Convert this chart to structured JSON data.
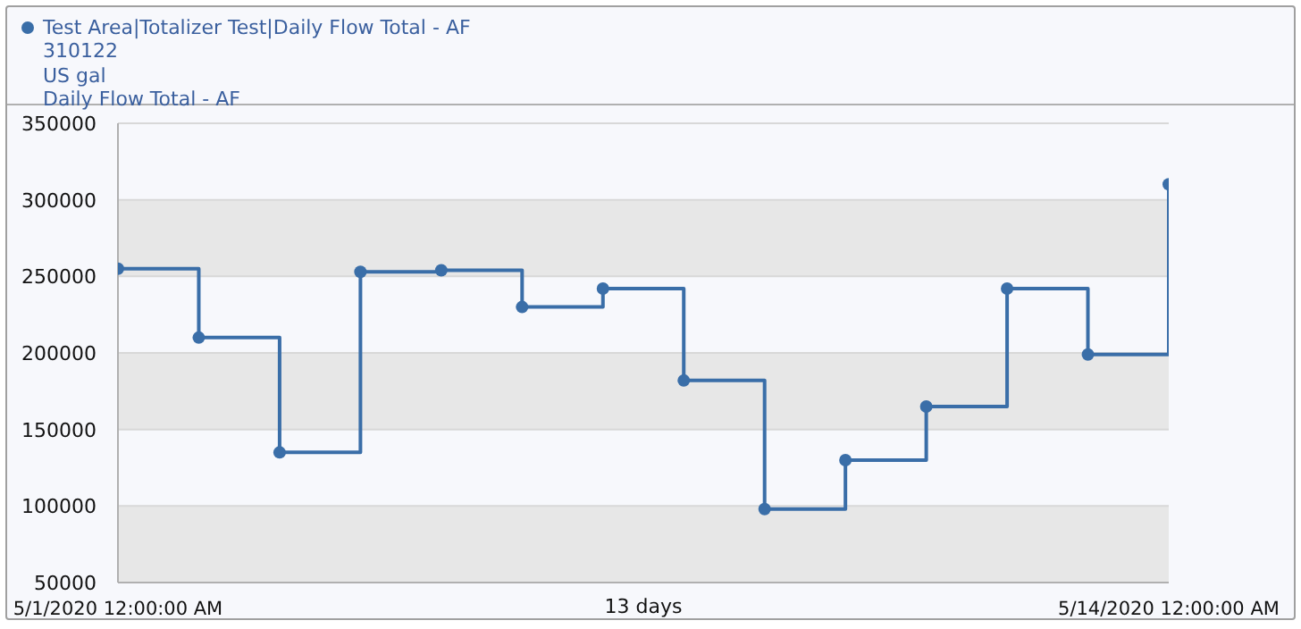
{
  "chart_data": {
    "type": "step",
    "legend": "top left",
    "grid": "y",
    "marker": "circle",
    "line_style": "solid",
    "x": [
      "2020-05-01",
      "2020-05-02",
      "2020-05-03",
      "2020-05-04",
      "2020-05-05",
      "2020-05-06",
      "2020-05-07",
      "2020-05-08",
      "2020-05-09",
      "2020-05-10",
      "2020-05-11",
      "2020-05-12",
      "2020-05-13",
      "2020-05-14"
    ],
    "series": [
      {
        "name": "Test Area|Totalizer Test|Daily Flow Total - AF",
        "color": "#3a6ea8",
        "values": [
          255000,
          210000,
          135000,
          253000,
          254000,
          230000,
          242000,
          182000,
          98000,
          130000,
          165000,
          242000,
          199000,
          310122
        ]
      }
    ],
    "annotations": [
      "310122",
      "US gal",
      "Daily Flow Total - AF"
    ],
    "xlabel": "13 days",
    "xlim": [
      "2020-05-01",
      "2020-05-14"
    ],
    "xticks": [
      {
        "value": "2020-05-01",
        "label": "5/1/2020 12:00:00 AM"
      },
      {
        "value": "2020-05-14",
        "label": "5/14/2020 12:00:00 AM"
      }
    ],
    "ylim": [
      50000,
      350000
    ],
    "yticks": [
      50000,
      100000,
      150000,
      200000,
      250000,
      300000,
      350000
    ]
  }
}
